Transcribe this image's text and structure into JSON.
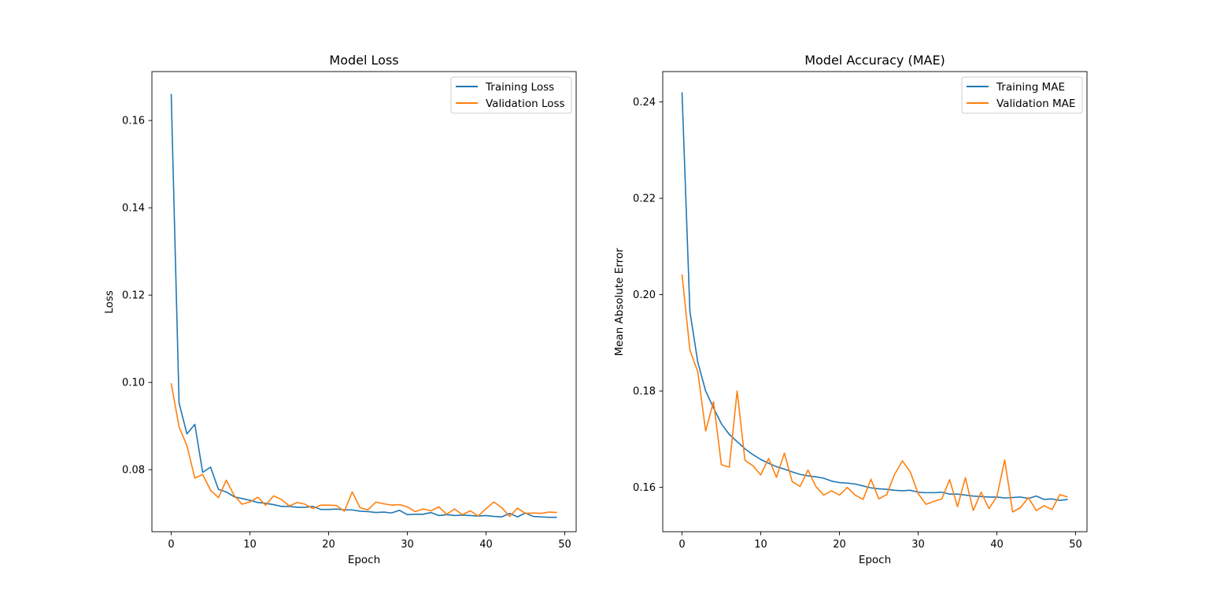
{
  "colors": {
    "training": "#1f77b4",
    "validation": "#ff7f0e"
  },
  "chart_data": [
    {
      "type": "line",
      "title": "Model Loss",
      "xlabel": "Epoch",
      "ylabel": "Loss",
      "xlim": [
        -2.45,
        51.45
      ],
      "ylim": [
        0.0658,
        0.1712
      ],
      "xticks": [
        0,
        10,
        20,
        30,
        40,
        50
      ],
      "yticks": [
        0.08,
        0.1,
        0.12,
        0.14,
        0.16
      ],
      "ytick_labels": [
        "0.08",
        "0.10",
        "0.12",
        "0.14",
        "0.16"
      ],
      "grid": false,
      "legend": "top-right",
      "series": [
        {
          "name": "Training Loss",
          "color": "#1f77b4",
          "values": [
            0.1661,
            0.0953,
            0.0882,
            0.0904,
            0.0794,
            0.0806,
            0.0755,
            0.0749,
            0.0738,
            0.0734,
            0.073,
            0.0725,
            0.0723,
            0.072,
            0.0716,
            0.0716,
            0.0714,
            0.0714,
            0.0716,
            0.0709,
            0.0709,
            0.071,
            0.0708,
            0.0708,
            0.0705,
            0.0704,
            0.0702,
            0.0703,
            0.0701,
            0.0707,
            0.0697,
            0.0698,
            0.0698,
            0.0702,
            0.0695,
            0.0697,
            0.0695,
            0.0696,
            0.0695,
            0.0694,
            0.0695,
            0.0693,
            0.0692,
            0.07,
            0.0692,
            0.0701,
            0.0693,
            0.0692,
            0.0691,
            0.0691
          ]
        },
        {
          "name": "Validation Loss",
          "color": "#ff7f0e",
          "values": [
            0.0998,
            0.0898,
            0.0855,
            0.0781,
            0.0789,
            0.0753,
            0.0736,
            0.0776,
            0.0741,
            0.0721,
            0.0726,
            0.0737,
            0.0719,
            0.074,
            0.0732,
            0.0717,
            0.0725,
            0.0721,
            0.0711,
            0.0719,
            0.0719,
            0.0718,
            0.0705,
            0.0749,
            0.0713,
            0.0708,
            0.0726,
            0.0722,
            0.0719,
            0.072,
            0.0715,
            0.0704,
            0.071,
            0.0706,
            0.0715,
            0.0698,
            0.071,
            0.0697,
            0.0706,
            0.0694,
            0.0711,
            0.0726,
            0.0713,
            0.0693,
            0.0712,
            0.07,
            0.0701,
            0.07,
            0.0703,
            0.0702
          ]
        }
      ]
    },
    {
      "type": "line",
      "title": "Model Accuracy (MAE)",
      "xlabel": "Epoch",
      "ylabel": "Mean Absolute Error",
      "xlim": [
        -2.45,
        51.45
      ],
      "ylim": [
        0.1508,
        0.2463
      ],
      "xticks": [
        0,
        10,
        20,
        30,
        40,
        50
      ],
      "yticks": [
        0.16,
        0.18,
        0.2,
        0.22,
        0.24
      ],
      "ytick_labels": [
        "0.16",
        "0.18",
        "0.20",
        "0.22",
        "0.24"
      ],
      "grid": false,
      "legend": "top-right",
      "series": [
        {
          "name": "Training MAE",
          "color": "#1f77b4",
          "values": [
            0.242,
            0.1965,
            0.186,
            0.18,
            0.1765,
            0.1732,
            0.171,
            0.1695,
            0.168,
            0.1668,
            0.1658,
            0.165,
            0.1643,
            0.1638,
            0.1632,
            0.1627,
            0.1624,
            0.1622,
            0.1619,
            0.1613,
            0.161,
            0.1609,
            0.1607,
            0.1603,
            0.1599,
            0.1597,
            0.1596,
            0.1594,
            0.1593,
            0.1594,
            0.159,
            0.1589,
            0.1589,
            0.159,
            0.1586,
            0.1586,
            0.1584,
            0.1582,
            0.1581,
            0.158,
            0.158,
            0.1578,
            0.1579,
            0.158,
            0.1577,
            0.1582,
            0.1575,
            0.1576,
            0.1573,
            0.1575
          ]
        },
        {
          "name": "Validation MAE",
          "color": "#ff7f0e",
          "values": [
            0.2042,
            0.1885,
            0.184,
            0.1717,
            0.1778,
            0.1647,
            0.1642,
            0.18,
            0.1656,
            0.1645,
            0.1626,
            0.166,
            0.1621,
            0.1671,
            0.1612,
            0.1602,
            0.1636,
            0.1602,
            0.1584,
            0.1593,
            0.1584,
            0.16,
            0.1584,
            0.1575,
            0.1617,
            0.1576,
            0.1585,
            0.1627,
            0.1655,
            0.1632,
            0.1587,
            0.1565,
            0.1571,
            0.1576,
            0.1616,
            0.156,
            0.162,
            0.1552,
            0.159,
            0.1556,
            0.1581,
            0.1657,
            0.1549,
            0.1558,
            0.1579,
            0.1552,
            0.1562,
            0.1554,
            0.1585,
            0.158
          ]
        }
      ]
    }
  ]
}
